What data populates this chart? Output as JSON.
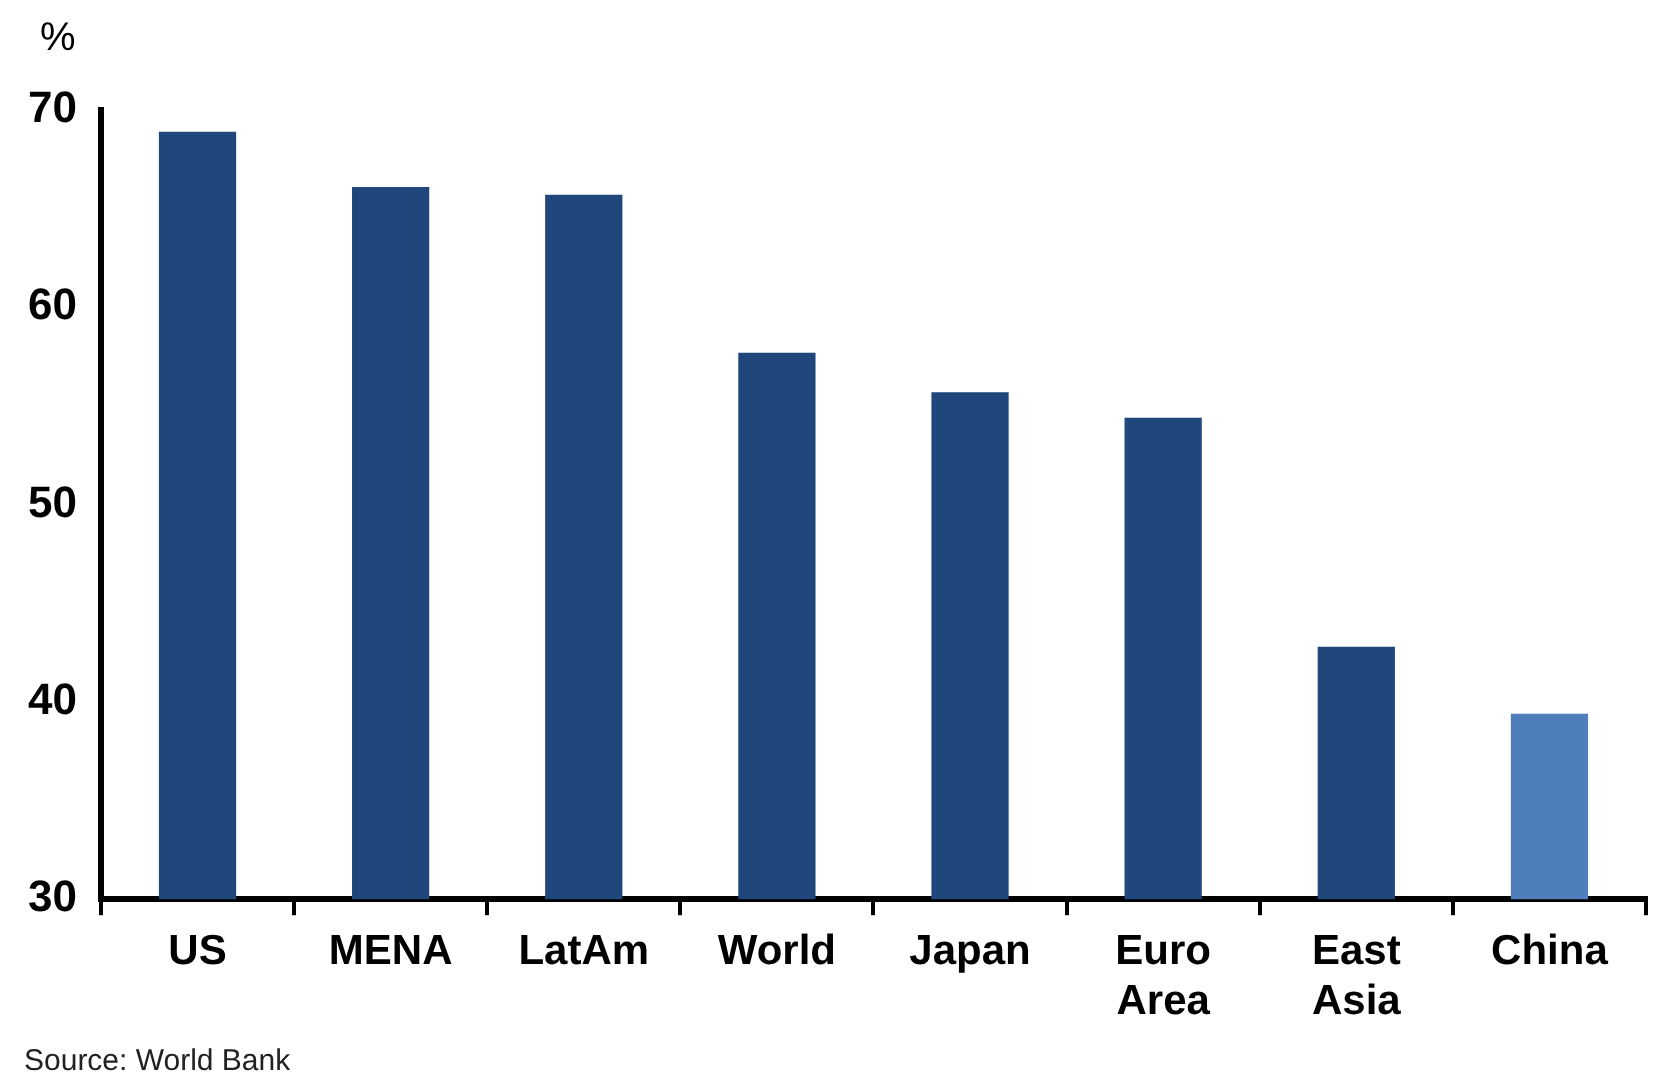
{
  "chart_data": {
    "type": "bar",
    "ylabel": "%",
    "categories": [
      "US",
      "MENA",
      "LatAm",
      "World",
      "Japan",
      "Euro Area",
      "East Asia",
      "China"
    ],
    "values": [
      68.9,
      66.1,
      65.7,
      57.7,
      55.7,
      54.4,
      42.8,
      39.4
    ],
    "colors": [
      "#1f477b",
      "#1f477b",
      "#1f477b",
      "#1f477b",
      "#1f477b",
      "#1f477b",
      "#1f477b",
      "#4f7fba"
    ],
    "ylim": [
      30,
      70
    ],
    "yticks": [
      30,
      40,
      50,
      60,
      70
    ],
    "grid": false,
    "legend": false,
    "annotations": [
      "Source: World Bank"
    ]
  }
}
